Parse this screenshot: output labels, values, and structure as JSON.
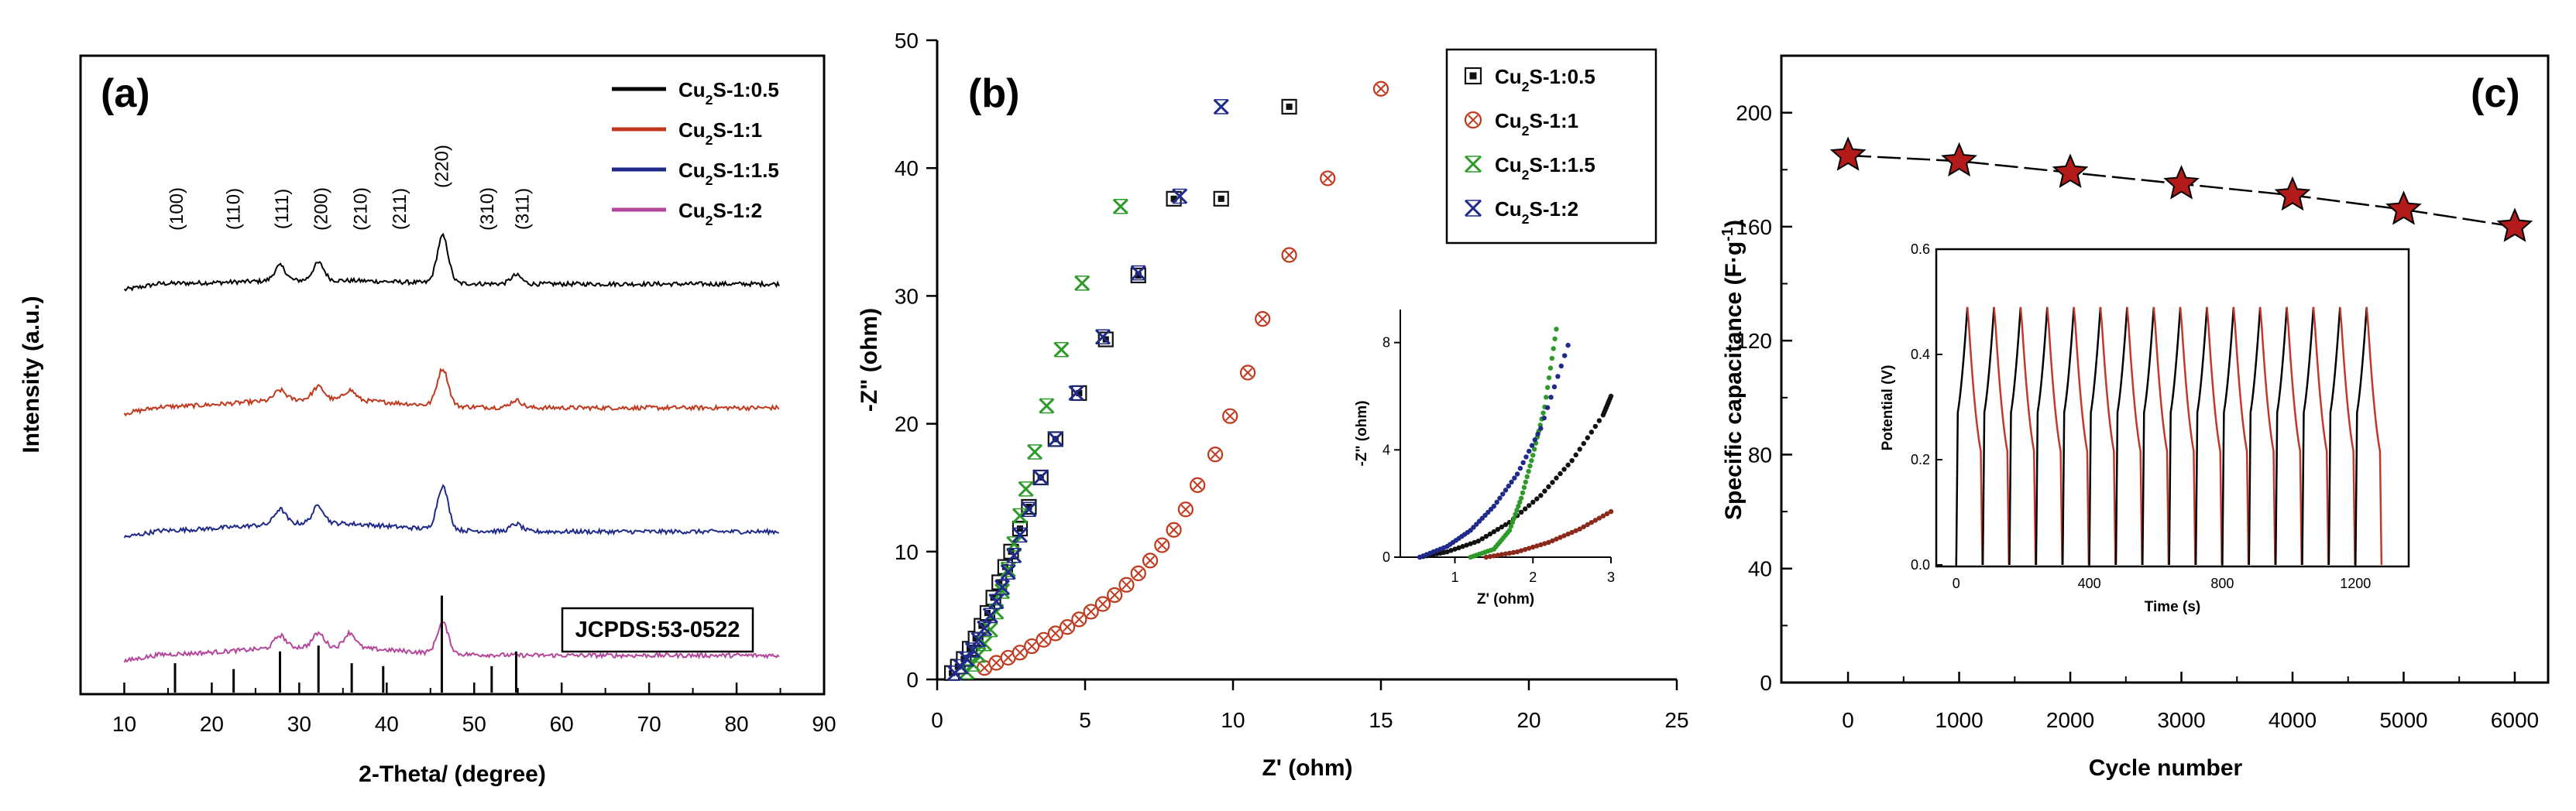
{
  "colors": {
    "black": "#000000",
    "red": "#c0391e",
    "navy": "#1f2a8a",
    "magenta": "#b5479b",
    "green": "#2e9a2a",
    "star_fill": "#b31b1b",
    "gcd_red": "#c0392b"
  },
  "chart_data": [
    {
      "id": "a",
      "type": "line",
      "panel_label": "(a)",
      "xlabel": "2-Theta/ (degree)",
      "ylabel": "Intensity (a.u.)",
      "xlim": [
        5,
        90
      ],
      "xticks": [
        10,
        20,
        30,
        40,
        50,
        60,
        70,
        80,
        90
      ],
      "legend_position": "top-right",
      "legend": [
        {
          "sub_pre": "Cu",
          "sub": "2",
          "post": "S-1:0.5",
          "color": "#000000"
        },
        {
          "sub_pre": "Cu",
          "sub": "2",
          "post": "S-1:1",
          "color": "#c0391e"
        },
        {
          "sub_pre": "Cu",
          "sub": "2",
          "post": "S-1:1.5",
          "color": "#1f2a8a"
        },
        {
          "sub_pre": "Cu",
          "sub": "2",
          "post": "S-1:2",
          "color": "#b5479b"
        }
      ],
      "series": [
        {
          "name": "Cu2S-1:0.5",
          "color": "#000000",
          "offset": 3.3,
          "peaks": [
            [
              27.8,
              0.12
            ],
            [
              32.2,
              0.14
            ],
            [
              46.4,
              0.38
            ],
            [
              54.8,
              0.07
            ]
          ]
        },
        {
          "name": "Cu2S-1:1",
          "color": "#c0391e",
          "offset": 2.3,
          "peaks": [
            [
              27.8,
              0.08
            ],
            [
              32.2,
              0.1
            ],
            [
              35.8,
              0.08
            ],
            [
              46.4,
              0.3
            ],
            [
              54.8,
              0.06
            ]
          ]
        },
        {
          "name": "Cu2S-1:1.5",
          "color": "#1f2a8a",
          "offset": 1.3,
          "peaks": [
            [
              27.8,
              0.12
            ],
            [
              32.2,
              0.14
            ],
            [
              46.4,
              0.35
            ],
            [
              54.8,
              0.06
            ]
          ]
        },
        {
          "name": "Cu2S-1:2",
          "color": "#b5479b",
          "offset": 0.3,
          "peaks": [
            [
              27.8,
              0.1
            ],
            [
              32.2,
              0.11
            ],
            [
              35.8,
              0.12
            ],
            [
              46.4,
              0.25
            ]
          ]
        }
      ],
      "hkl_labels": [
        {
          "x": 16,
          "text": "(100)"
        },
        {
          "x": 22.5,
          "text": "(110)"
        },
        {
          "x": 28,
          "text": "(111)"
        },
        {
          "x": 32.5,
          "text": "(200)"
        },
        {
          "x": 37,
          "text": "(210)"
        },
        {
          "x": 41.5,
          "text": "(211)"
        },
        {
          "x": 46.3,
          "text": "(220)"
        },
        {
          "x": 51.5,
          "text": "(310)"
        },
        {
          "x": 55.5,
          "text": "(311)"
        }
      ],
      "reference": {
        "label": "JCPDS:53-0522",
        "sticks": [
          [
            15.8,
            0.2
          ],
          [
            22.5,
            0.16
          ],
          [
            27.8,
            0.28
          ],
          [
            32.2,
            0.32
          ],
          [
            36.0,
            0.2
          ],
          [
            39.6,
            0.18
          ],
          [
            46.3,
            0.66
          ],
          [
            52.0,
            0.18
          ],
          [
            54.8,
            0.28
          ]
        ]
      }
    },
    {
      "id": "b",
      "type": "scatter",
      "panel_label": "(b)",
      "xlabel": "Z' (ohm)",
      "ylabel": "-Z\" (ohm)",
      "xlim": [
        0,
        25
      ],
      "ylim": [
        0,
        50
      ],
      "xticks": [
        0,
        5,
        10,
        15,
        20,
        25
      ],
      "yticks": [
        0,
        10,
        20,
        30,
        40,
        50
      ],
      "legend_position": "top-right",
      "legend": [
        {
          "sub_pre": "Cu",
          "sub": "2",
          "post": "S-1:0.5",
          "color": "#111111",
          "marker": "square"
        },
        {
          "sub_pre": "Cu",
          "sub": "2",
          "post": "S-1:1",
          "color": "#c0391e",
          "marker": "circle"
        },
        {
          "sub_pre": "Cu",
          "sub": "2",
          "post": "S-1:1.5",
          "color": "#2e9a2a",
          "marker": "cross"
        },
        {
          "sub_pre": "Cu",
          "sub": "2",
          "post": "S-1:2",
          "color": "#1f2a8a",
          "marker": "cross"
        }
      ],
      "series": [
        {
          "name": "Cu2S-1:0.5",
          "color": "#111111",
          "marker": "square",
          "points": [
            [
              0.5,
              0.5
            ],
            [
              0.7,
              1.0
            ],
            [
              0.9,
              1.6
            ],
            [
              1.1,
              2.4
            ],
            [
              1.3,
              3.2
            ],
            [
              1.5,
              4.2
            ],
            [
              1.7,
              5.2
            ],
            [
              1.9,
              6.4
            ],
            [
              2.1,
              7.6
            ],
            [
              2.3,
              8.8
            ],
            [
              2.5,
              10.0
            ],
            [
              2.8,
              11.8
            ],
            [
              3.1,
              13.5
            ],
            [
              3.5,
              15.8
            ],
            [
              4.0,
              18.8
            ],
            [
              4.8,
              22.4
            ],
            [
              5.7,
              26.6
            ],
            [
              6.8,
              31.6
            ],
            [
              8.0,
              37.6
            ],
            [
              9.6,
              37.6
            ],
            [
              11.9,
              44.8
            ]
          ]
        },
        {
          "name": "Cu2S-1:1",
          "color": "#c0391e",
          "marker": "circle",
          "points": [
            [
              1.6,
              0.9
            ],
            [
              2.0,
              1.3
            ],
            [
              2.4,
              1.7
            ],
            [
              2.8,
              2.1
            ],
            [
              3.2,
              2.6
            ],
            [
              3.6,
              3.1
            ],
            [
              4.0,
              3.6
            ],
            [
              4.4,
              4.1
            ],
            [
              4.8,
              4.7
            ],
            [
              5.2,
              5.3
            ],
            [
              5.6,
              5.9
            ],
            [
              6.0,
              6.6
            ],
            [
              6.4,
              7.4
            ],
            [
              6.8,
              8.3
            ],
            [
              7.2,
              9.3
            ],
            [
              7.6,
              10.5
            ],
            [
              8.0,
              11.7
            ],
            [
              8.4,
              13.3
            ],
            [
              8.8,
              15.2
            ],
            [
              9.4,
              17.6
            ],
            [
              9.9,
              20.6
            ],
            [
              10.5,
              24.0
            ],
            [
              11.0,
              28.2
            ],
            [
              11.9,
              33.2
            ],
            [
              13.2,
              39.2
            ],
            [
              15.0,
              46.2
            ]
          ]
        },
        {
          "name": "Cu2S-1:1.5",
          "color": "#2e9a2a",
          "marker": "cross",
          "points": [
            [
              1.0,
              0.6
            ],
            [
              1.2,
              1.2
            ],
            [
              1.4,
              1.9
            ],
            [
              1.6,
              2.8
            ],
            [
              1.8,
              3.9
            ],
            [
              2.0,
              5.3
            ],
            [
              2.2,
              6.9
            ],
            [
              2.4,
              8.6
            ],
            [
              2.6,
              10.6
            ],
            [
              2.8,
              12.8
            ],
            [
              3.0,
              14.9
            ],
            [
              3.3,
              17.8
            ],
            [
              3.7,
              21.4
            ],
            [
              4.2,
              25.8
            ],
            [
              4.9,
              31.0
            ],
            [
              6.2,
              37.0
            ]
          ]
        },
        {
          "name": "Cu2S-1:2",
          "color": "#1f2a8a",
          "marker": "cross",
          "points": [
            [
              0.6,
              0.5
            ],
            [
              0.8,
              1.0
            ],
            [
              1.0,
              1.6
            ],
            [
              1.2,
              2.3
            ],
            [
              1.4,
              3.1
            ],
            [
              1.6,
              4.0
            ],
            [
              1.8,
              5.0
            ],
            [
              2.0,
              6.1
            ],
            [
              2.2,
              7.2
            ],
            [
              2.4,
              8.4
            ],
            [
              2.6,
              9.7
            ],
            [
              2.8,
              11.3
            ],
            [
              3.1,
              13.3
            ],
            [
              3.5,
              15.8
            ],
            [
              4.0,
              18.8
            ],
            [
              4.7,
              22.4
            ],
            [
              5.6,
              26.8
            ],
            [
              6.8,
              31.8
            ],
            [
              8.2,
              37.8
            ],
            [
              9.6,
              44.8
            ]
          ]
        }
      ],
      "inset": {
        "type": "line",
        "xlabel": "Z' (ohm)",
        "ylabel": "-Z\" (ohm)",
        "xlim": [
          0.3,
          3
        ],
        "ylim": [
          0,
          9
        ],
        "xticks": [
          1,
          2,
          3
        ],
        "yticks": [
          0,
          4,
          8
        ],
        "series": [
          {
            "name": "Cu2S-1:0.5",
            "color": "#111111",
            "points": [
              [
                0.55,
                0.0
              ],
              [
                0.9,
                0.2
              ],
              [
                1.3,
                0.6
              ],
              [
                1.7,
                1.3
              ],
              [
                2.1,
                2.3
              ],
              [
                2.5,
                3.6
              ],
              [
                2.9,
                5.3
              ],
              [
                3.0,
                6.0
              ]
            ]
          },
          {
            "name": "Cu2S-1:1",
            "color": "#8b2a1a",
            "points": [
              [
                1.4,
                0.0
              ],
              [
                1.8,
                0.2
              ],
              [
                2.2,
                0.55
              ],
              [
                2.6,
                1.05
              ],
              [
                3.0,
                1.7
              ]
            ]
          },
          {
            "name": "Cu2S-1:1.5",
            "color": "#2e9a2a",
            "points": [
              [
                1.2,
                0.0
              ],
              [
                1.5,
                0.3
              ],
              [
                1.7,
                1.0
              ],
              [
                1.85,
                2.2
              ],
              [
                2.0,
                3.8
              ],
              [
                2.15,
                5.6
              ],
              [
                2.3,
                8.5
              ]
            ]
          },
          {
            "name": "Cu2S-1:2",
            "color": "#1f2a8a",
            "points": [
              [
                0.55,
                0.0
              ],
              [
                0.9,
                0.4
              ],
              [
                1.2,
                1.0
              ],
              [
                1.5,
                1.9
              ],
              [
                1.8,
                3.1
              ],
              [
                2.1,
                4.8
              ],
              [
                2.45,
                7.9
              ]
            ]
          }
        ]
      }
    },
    {
      "id": "c",
      "type": "line",
      "panel_label": "(c)",
      "xlabel": "Cycle number",
      "ylabel_main": "Specific capacitance (F·g",
      "ylabel_sup": "-1",
      "ylabel_end": ")",
      "xlim": [
        -600,
        6300
      ],
      "ylim": [
        0,
        220
      ],
      "xticks": [
        0,
        1000,
        2000,
        3000,
        4000,
        5000,
        6000
      ],
      "yticks": [
        0,
        40,
        80,
        120,
        160,
        200
      ],
      "series": [
        {
          "name": "Specific capacitance",
          "color": "#000000",
          "marker": "star",
          "points": [
            [
              0,
              185
            ],
            [
              1000,
              183
            ],
            [
              2000,
              179
            ],
            [
              3000,
              175
            ],
            [
              4000,
              171
            ],
            [
              5000,
              166
            ],
            [
              6000,
              160
            ]
          ]
        }
      ],
      "inset": {
        "type": "line",
        "xlabel": "Time (s)",
        "ylabel": "Potential (V)",
        "xlim": [
          -60,
          1360
        ],
        "ylim": [
          0,
          0.6
        ],
        "xticks": [
          0,
          400,
          800,
          1200
        ],
        "yticks": [
          "0.0",
          "0.2",
          "0.4",
          "0.6"
        ],
        "cycles": 16,
        "period": 80,
        "t_start": 0,
        "v_max": 0.49,
        "v_knee": 0.29
      }
    }
  ]
}
